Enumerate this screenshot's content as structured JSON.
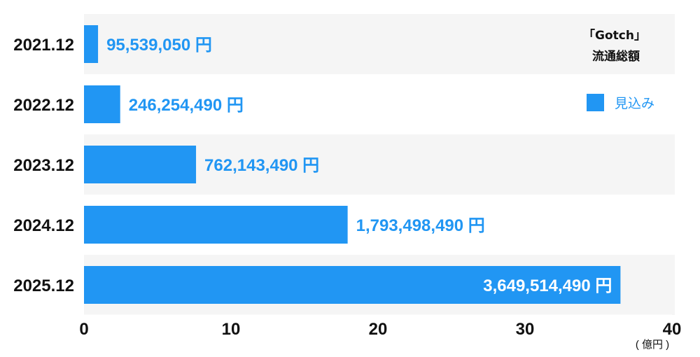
{
  "colors": {
    "bar": "#2196F3",
    "value_text": "#2196F3",
    "value_text_inside": "#ffffff",
    "band_alt": "#f5f5f5",
    "axis": "#111111"
  },
  "legend": {
    "title_line1": "「Gotch」",
    "title_line2": "流通総額",
    "series_label": "見込み"
  },
  "chart_data": {
    "type": "bar",
    "orientation": "horizontal",
    "categories": [
      "2021.12",
      "2022.12",
      "2023.12",
      "2024.12",
      "2025.12"
    ],
    "series": [
      {
        "name": "見込み",
        "values": [
          95539050,
          246254490,
          762143490,
          1793498490,
          3649514490
        ],
        "value_labels": [
          "95,539,050 円",
          "246,254,490 円",
          "762,143,490 円",
          "1,793,498,490 円",
          "3,649,514,490 円"
        ]
      }
    ],
    "unit_divisor": 100000000,
    "xlim": [
      0,
      40
    ],
    "xticks": [
      "0",
      "10",
      "20",
      "30",
      "40"
    ],
    "xunit": "( 億円 )",
    "legend_position": "top-right",
    "grid": false
  }
}
